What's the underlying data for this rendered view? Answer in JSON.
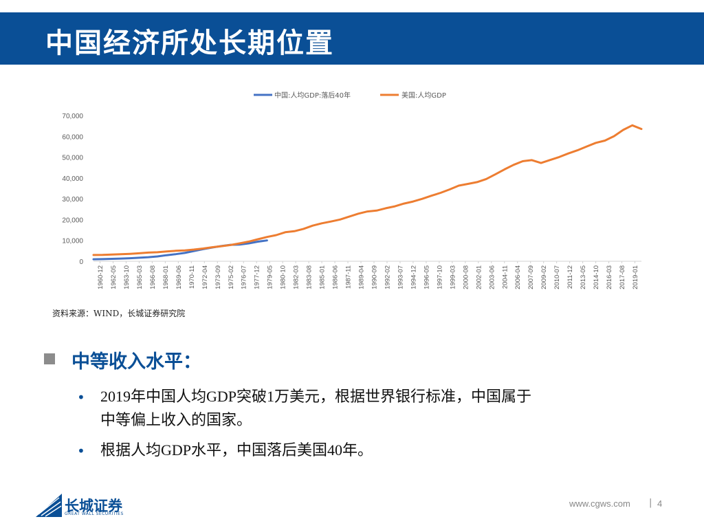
{
  "header": {
    "title": "中国经济所处长期位置"
  },
  "chart_data": {
    "type": "line",
    "title": "",
    "xlabel": "",
    "ylabel": "",
    "ylim": [
      0,
      70000
    ],
    "yticks": [
      0,
      10000,
      20000,
      30000,
      40000,
      50000,
      60000,
      70000
    ],
    "ytick_labels": [
      "0",
      "10,000",
      "20,000",
      "30,000",
      "40,000",
      "50,000",
      "60,000",
      "70,000"
    ],
    "x_tick_labels": [
      "1960-12",
      "1962-05",
      "1963-10",
      "1965-03",
      "1966-08",
      "1968-01",
      "1969-06",
      "1970-11",
      "1972-04",
      "1973-09",
      "1975-02",
      "1976-07",
      "1977-12",
      "1979-05",
      "1980-10",
      "1982-03",
      "1983-08",
      "1985-01",
      "1986-06",
      "1987-11",
      "1989-04",
      "1990-09",
      "1992-02",
      "1993-07",
      "1994-12",
      "1996-05",
      "1997-10",
      "1999-03",
      "2000-08",
      "2002-01",
      "2003-06",
      "2004-11",
      "2006-04",
      "2007-09",
      "2009-02",
      "2010-07",
      "2011-12",
      "2013-05",
      "2014-10",
      "2016-03",
      "2017-08",
      "2019-01"
    ],
    "x_start": 1960,
    "x_end": 2020,
    "legend_position": "top",
    "grid": false,
    "series": [
      {
        "name": "中国:人均GDP:落后40年",
        "color": "#4472c4",
        "x": [
          1960,
          1961,
          1962,
          1963,
          1964,
          1965,
          1966,
          1967,
          1968,
          1969,
          1970,
          1971,
          1972,
          1973,
          1974,
          1975,
          1976,
          1977,
          1978,
          1979
        ],
        "values": [
          960,
          1030,
          1150,
          1280,
          1450,
          1700,
          1950,
          2300,
          2900,
          3400,
          4000,
          4900,
          5800,
          6600,
          7300,
          7900,
          8000,
          8600,
          9400,
          10000
        ]
      },
      {
        "name": "美国:人均GDP",
        "color": "#ed7d31",
        "x": [
          1960,
          1961,
          1962,
          1963,
          1964,
          1965,
          1966,
          1967,
          1968,
          1969,
          1970,
          1971,
          1972,
          1973,
          1974,
          1975,
          1976,
          1977,
          1978,
          1979,
          1980,
          1981,
          1982,
          1983,
          1984,
          1985,
          1986,
          1987,
          1988,
          1989,
          1990,
          1991,
          1992,
          1993,
          1994,
          1995,
          1996,
          1997,
          1998,
          1999,
          2000,
          2001,
          2002,
          2003,
          2004,
          2005,
          2006,
          2007,
          2008,
          2009,
          2010,
          2011,
          2012,
          2013,
          2014,
          2015,
          2016,
          2017,
          2018,
          2019,
          2020
        ],
        "values": [
          3000,
          3070,
          3240,
          3370,
          3570,
          3830,
          4150,
          4340,
          4700,
          5030,
          5230,
          5610,
          6110,
          6740,
          7240,
          7800,
          8590,
          9450,
          10560,
          11670,
          12550,
          13950,
          14430,
          15560,
          17120,
          18240,
          19070,
          20040,
          21420,
          22860,
          23890,
          24340,
          25470,
          26390,
          27690,
          28690,
          29970,
          31460,
          32850,
          34510,
          36330,
          37130,
          38020,
          39490,
          41720,
          44120,
          46300,
          48050,
          48570,
          47190,
          48650,
          50070,
          51780,
          53290,
          55120,
          56850,
          57950,
          60050,
          63060,
          65280,
          63540
        ]
      }
    ]
  },
  "source": "资料来源：WIND，长城证券研究院",
  "section": {
    "title": "中等收入水平：",
    "bullets": [
      {
        "marker": "•",
        "line1": "2019年中国人均GDP突破1万美元，根据世界银行标准，中国属于",
        "line2": "中等偏上收入的国家。"
      },
      {
        "marker": "•",
        "line1": "根据人均GDP水平，中国落后美国40年。",
        "line2": ""
      }
    ]
  },
  "footer": {
    "logo_cn": "长城证券",
    "logo_en": "GREAT WALL SECURITIES",
    "url": "www.cgws.com",
    "separator": "|",
    "page": "4"
  },
  "colors": {
    "brand": "#0a4f96",
    "china_line": "#4472c4",
    "us_line": "#ed7d31"
  }
}
